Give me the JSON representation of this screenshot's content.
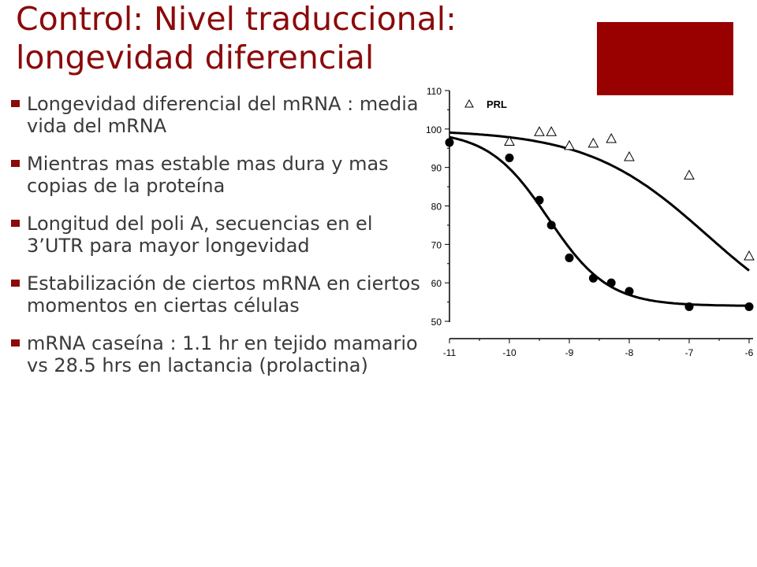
{
  "slide": {
    "title_lines": [
      "Control: Nivel traduccional:",
      "longevidad diferencial"
    ],
    "accent_color": "#990000"
  },
  "bullets": [
    "Longevidad diferencial del mRNA : media vida del mRNA",
    "Mientras mas estable mas dura y mas copias de la proteína",
    "Longitud del poli A, secuencias en el 3’UTR para mayor longevidad",
    "Estabilización de ciertos mRNA en ciertos momentos en ciertas células",
    "mRNA caseína : 1.1 hr en tejido mamario vs 28.5 hrs en lactancia (prolactina)"
  ],
  "chart_data": {
    "type": "scatter",
    "title": "",
    "xlabel": "",
    "ylabel": "",
    "xlim": [
      -11,
      -6
    ],
    "ylim": [
      50,
      110
    ],
    "x_ticks": [
      -11,
      -10,
      -9,
      -8,
      -7,
      -6
    ],
    "y_ticks": [
      50,
      60,
      70,
      80,
      90,
      100,
      110
    ],
    "legend": {
      "label": "PRL",
      "placement": "top-left"
    },
    "series": [
      {
        "name": "PRL",
        "marker": "triangle-open",
        "points": [
          [
            -10,
            96.8
          ],
          [
            -9.5,
            99.3
          ],
          [
            -9.3,
            99.3
          ],
          [
            -9,
            95.7
          ],
          [
            -8.6,
            96.3
          ],
          [
            -8.3,
            97.5
          ],
          [
            -8,
            92.8
          ],
          [
            -7,
            88
          ],
          [
            -6,
            67
          ]
        ]
      },
      {
        "name": "",
        "marker": "circle-filled",
        "points": [
          [
            -11,
            96.5
          ],
          [
            -10,
            92.5
          ],
          [
            -9.5,
            81.5
          ],
          [
            -9.3,
            75
          ],
          [
            -9,
            66.5
          ],
          [
            -8.6,
            61.2
          ],
          [
            -8.3,
            60
          ],
          [
            -8,
            57.8
          ],
          [
            -7,
            53.8
          ],
          [
            -6,
            53.8
          ]
        ]
      }
    ]
  }
}
